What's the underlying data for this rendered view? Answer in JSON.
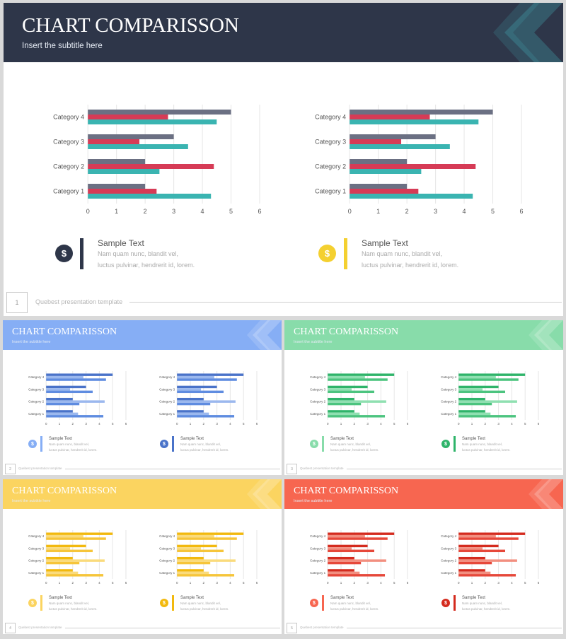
{
  "slides": [
    {
      "title": "CHART COMPARISSON",
      "subtitle": "Insert  the  subtitle  here",
      "page": "1",
      "header_color": "#2e3649",
      "accent_a": "#6b7083",
      "accent_b": "#d63b56",
      "accent_c": "#3ab4b1",
      "icon1_color": "#2e3649",
      "icon2_color": "#f4d030",
      "bar1_color": "#2e3649",
      "bar2_color": "#f4d030"
    },
    {
      "title": "CHART COMPARISSON",
      "subtitle": "Insert  the  subtitle  here",
      "page": "2",
      "header_color": "#86aef5",
      "accent_a": "#4a73c9",
      "accent_b": "#9bb8ee",
      "accent_c": "#5f8ce0",
      "icon1_color": "#86aef5",
      "icon2_color": "#4a73c9",
      "bar1_color": "#86aef5",
      "bar2_color": "#4a73c9"
    },
    {
      "title": "CHART COMPARISSON",
      "subtitle": "Insert  the  subtitle  here",
      "page": "3",
      "header_color": "#88dcaa",
      "accent_a": "#2fb46a",
      "accent_b": "#8fe0b1",
      "accent_c": "#4cc47f",
      "icon1_color": "#88dcaa",
      "icon2_color": "#2fb46a",
      "bar1_color": "#88dcaa",
      "bar2_color": "#2fb46a"
    },
    {
      "title": "CHART COMPARISSON",
      "subtitle": "Insert  the  subtitle  here",
      "page": "4",
      "header_color": "#fbd460",
      "accent_a": "#f2b90e",
      "accent_b": "#fadb7c",
      "accent_c": "#f6c53a",
      "icon1_color": "#fbd460",
      "icon2_color": "#f2b90e",
      "bar1_color": "#fbd460",
      "bar2_color": "#f2b90e"
    },
    {
      "title": "CHART COMPARISSON",
      "subtitle": "Insert  the  subtitle  here",
      "page": "5",
      "header_color": "#f76650",
      "accent_a": "#d42b1e",
      "accent_b": "#f28f80",
      "accent_c": "#e6483a",
      "icon1_color": "#f76650",
      "icon2_color": "#d42b1e",
      "bar1_color": "#f76650",
      "bar2_color": "#d42b1e"
    }
  ],
  "info_items": {
    "heading": "Sample  Text",
    "line1": "Nam  quam  nunc,  blandit  vel,",
    "line2": "luctus  pulvinar,  hendrerit  id,  lorem.",
    "icon1_symbol": "$",
    "icon2_symbol": "$",
    "icon1_name": "dollar-icon",
    "icon2_name": "piggy-bank-icon"
  },
  "footer_text": "Quebest  presentation  template",
  "chart_data": {
    "type": "bar",
    "orientation": "horizontal",
    "categories": [
      "Category 1",
      "Category 2",
      "Category 3",
      "Category 4"
    ],
    "series": [
      {
        "values": [
          2.0,
          2.0,
          3.0,
          5.0
        ]
      },
      {
        "values": [
          2.4,
          4.4,
          1.8,
          2.8
        ]
      },
      {
        "values": [
          4.3,
          2.5,
          3.5,
          4.5
        ]
      }
    ],
    "x_ticks": [
      "0",
      "1",
      "2",
      "3",
      "4",
      "5",
      "6"
    ],
    "xlim": [
      0,
      6
    ],
    "grid": true
  }
}
